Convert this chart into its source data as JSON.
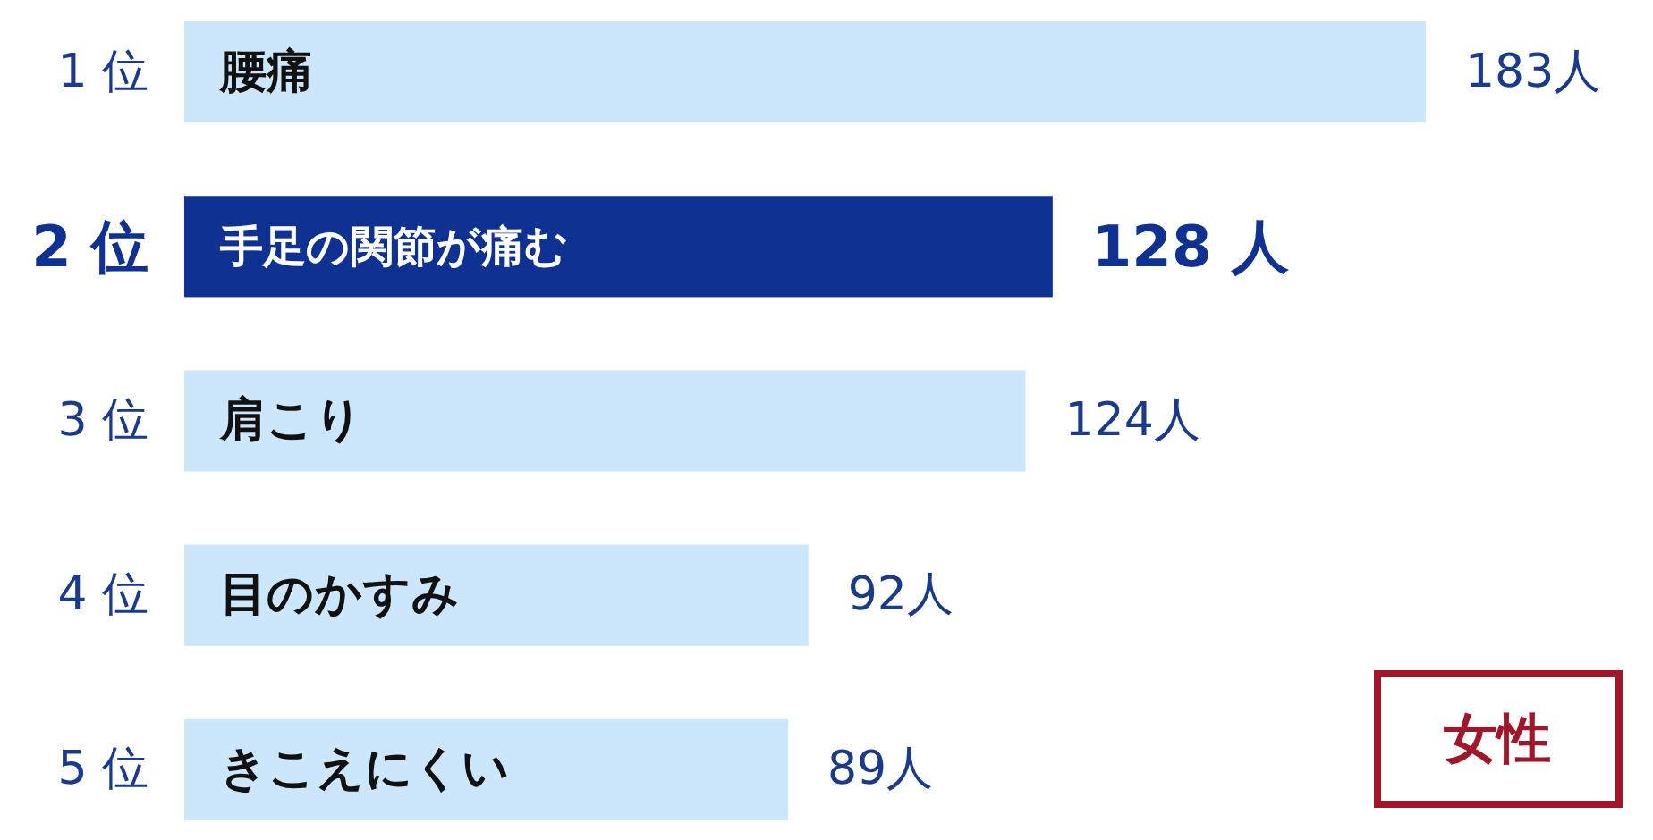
{
  "chart_data": {
    "type": "bar",
    "orientation": "horizontal",
    "categories": [
      "腰痛",
      "手足の関節が痛む",
      "肩こり",
      "目のかすみ",
      "きこえにくい"
    ],
    "values": [
      183,
      128,
      124,
      92,
      89
    ],
    "colors": [
      "#cce6fb",
      "#0e3192",
      "#cce6fb",
      "#cce6fb",
      "#cce6fb"
    ],
    "value_labels": [
      "183人",
      "128 人",
      "124人",
      "92人",
      "89人"
    ],
    "annotations": [
      "1 位",
      "2 位",
      "3 位",
      "4 位",
      "5 位",
      "女性"
    ]
  }
}
